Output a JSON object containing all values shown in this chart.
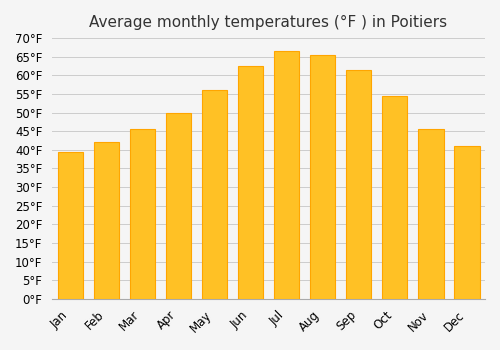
{
  "title": "Average monthly temperatures (°F ) in Poitiers",
  "months": [
    "Jan",
    "Feb",
    "Mar",
    "Apr",
    "May",
    "Jun",
    "Jul",
    "Aug",
    "Sep",
    "Oct",
    "Nov",
    "Dec"
  ],
  "values": [
    39.5,
    42.0,
    45.5,
    50.0,
    56.0,
    62.5,
    66.5,
    65.5,
    61.5,
    54.5,
    45.5,
    41.0
  ],
  "bar_color_face": "#FFC125",
  "bar_color_edge": "#FFA500",
  "ylim": [
    0,
    70
  ],
  "ytick_step": 5,
  "background_color": "#F5F5F5",
  "grid_color": "#CCCCCC",
  "title_fontsize": 11,
  "tick_fontsize": 8.5
}
